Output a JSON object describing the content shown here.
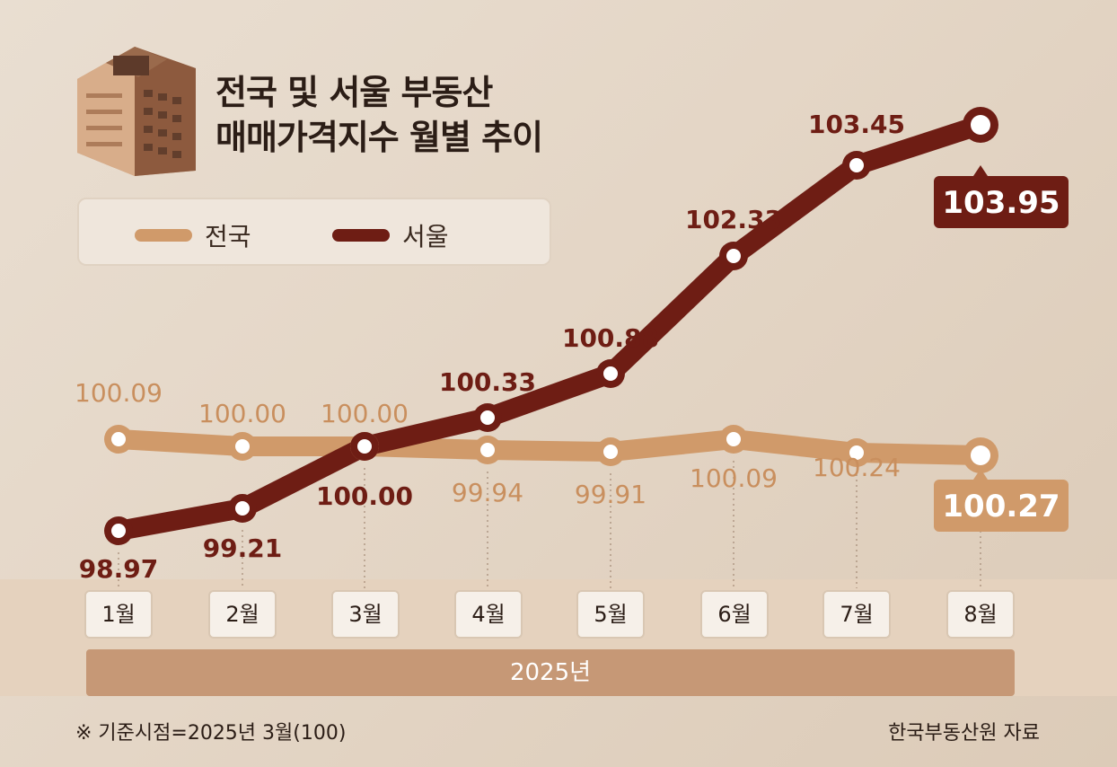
{
  "header": {
    "title_line1": "전국 및 서울 부동산",
    "title_line2": "매매가격지수 월별 추이",
    "icon": "apartment-building-icon"
  },
  "legend": {
    "national_label": "전국",
    "seoul_label": "서울"
  },
  "colors": {
    "national": "#d09a6a",
    "seoul": "#6e1d14",
    "national_label": "#c98f5e",
    "seoul_label": "#6e1d14"
  },
  "chart_data": {
    "type": "line",
    "categories": [
      "1월",
      "2월",
      "3월",
      "4월",
      "5월",
      "6월",
      "7월",
      "8월"
    ],
    "series": [
      {
        "name": "전국",
        "values": [
          100.09,
          100.0,
          100.0,
          99.94,
          99.91,
          100.09,
          100.24,
          100.27
        ],
        "labels": [
          "100.09",
          "100.00",
          "100.00",
          "99.94",
          "99.91",
          "100.09",
          "100.24",
          "100.27"
        ]
      },
      {
        "name": "서울",
        "values": [
          98.97,
          99.21,
          100.0,
          100.33,
          100.88,
          102.33,
          103.45,
          103.95
        ],
        "labels": [
          "98.97",
          "99.21",
          "100.00",
          "100.33",
          "100.88",
          "102.33",
          "103.45",
          "103.95"
        ]
      }
    ],
    "period_label": "2025년"
  },
  "footer": {
    "note": "※ 기준시점=2025년 3월(100)",
    "source": "한국부동산원 자료"
  }
}
